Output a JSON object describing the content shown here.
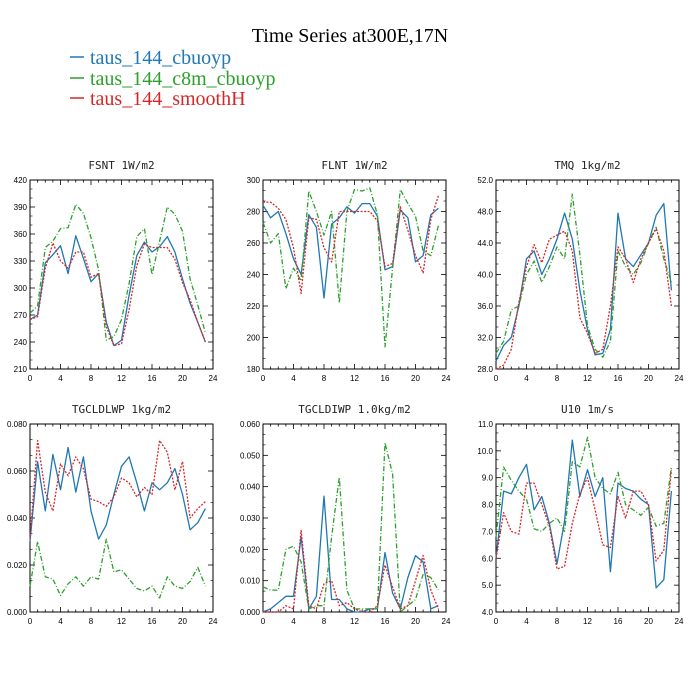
{
  "figure": {
    "title": "Time Series at300E,17N",
    "legend": [
      {
        "label": "taus_144_cbuoyp",
        "color": "#1f77b4"
      },
      {
        "label": "taus_144_c8m_cbuoyp",
        "color": "#2ca02c"
      },
      {
        "label": "taus_144_smoothH",
        "color": "#d62728"
      }
    ]
  },
  "chart_data": [
    {
      "type": "line",
      "title": "FSNT   1W/m2",
      "xlim": [
        0,
        24
      ],
      "ylim": [
        210,
        420
      ],
      "xticks": [
        0,
        4,
        8,
        12,
        16,
        20,
        24
      ],
      "yticks": [
        210,
        240,
        270,
        300,
        330,
        360,
        390,
        420
      ],
      "ytick_labels": [
        "210",
        "240",
        "270",
        "300",
        "330",
        "360",
        "390",
        "420"
      ],
      "x": [
        0,
        1,
        2,
        3,
        4,
        5,
        6,
        7,
        8,
        9,
        10,
        11,
        12,
        13,
        14,
        15,
        16,
        17,
        18,
        19,
        20,
        21,
        22,
        23
      ],
      "series": [
        {
          "name": "taus_144_cbuoyp",
          "color": "#1f77b4",
          "style": "solid",
          "values": [
            265,
            270,
            328,
            337,
            347,
            316,
            358,
            333,
            307,
            316,
            262,
            236,
            242,
            292,
            336,
            351,
            340,
            346,
            357,
            340,
            310,
            283,
            262,
            240
          ]
        },
        {
          "name": "taus_144_c8m_cbuoyp",
          "color": "#2ca02c",
          "style": "dashdot",
          "values": [
            272,
            280,
            345,
            352,
            366,
            367,
            393,
            383,
            356,
            320,
            242,
            246,
            265,
            305,
            357,
            366,
            315,
            352,
            390,
            382,
            363,
            310,
            281,
            250
          ]
        },
        {
          "name": "taus_144_smoothH",
          "color": "#d62728",
          "style": "dotted",
          "values": [
            265,
            268,
            322,
            350,
            330,
            322,
            340,
            340,
            312,
            316,
            257,
            236,
            238,
            276,
            325,
            349,
            345,
            345,
            345,
            332,
            306,
            287,
            262,
            240
          ]
        }
      ]
    },
    {
      "type": "line",
      "title": "FLNT   1W/m2",
      "xlim": [
        0,
        24
      ],
      "ylim": [
        180,
        300
      ],
      "xticks": [
        0,
        4,
        8,
        12,
        16,
        20,
        24
      ],
      "yticks": [
        180,
        200,
        220,
        240,
        260,
        280,
        300
      ],
      "ytick_labels": [
        "180",
        "200",
        "220",
        "240",
        "260",
        "280",
        "300"
      ],
      "x": [
        0,
        1,
        2,
        3,
        4,
        5,
        6,
        7,
        8,
        9,
        10,
        11,
        12,
        13,
        14,
        15,
        16,
        17,
        18,
        19,
        20,
        21,
        22,
        23
      ],
      "series": [
        {
          "name": "taus_144_cbuoyp",
          "color": "#1f77b4",
          "style": "solid",
          "values": [
            284,
            276,
            280,
            266,
            250,
            240,
            278,
            270,
            225,
            272,
            276,
            283,
            279,
            285,
            285,
            277,
            243,
            245,
            281,
            276,
            248,
            252,
            278,
            282
          ]
        },
        {
          "name": "taus_144_c8m_cbuoyp",
          "color": "#2ca02c",
          "style": "dashdot",
          "values": [
            273,
            260,
            266,
            231,
            244,
            236,
            293,
            280,
            265,
            280,
            222,
            280,
            294,
            293,
            295,
            278,
            194,
            244,
            294,
            285,
            277,
            255,
            252,
            271
          ]
        },
        {
          "name": "taus_144_smoothH",
          "color": "#d62728",
          "style": "dotted",
          "values": [
            286,
            286,
            282,
            275,
            257,
            228,
            276,
            275,
            257,
            248,
            280,
            280,
            280,
            280,
            280,
            274,
            245,
            247,
            283,
            268,
            252,
            241,
            275,
            290
          ]
        }
      ]
    },
    {
      "type": "line",
      "title": "TMQ   1kg/m2",
      "xlim": [
        0,
        24
      ],
      "ylim": [
        28,
        52
      ],
      "xticks": [
        0,
        4,
        8,
        12,
        16,
        20,
        24
      ],
      "yticks": [
        28,
        32,
        36,
        40,
        44,
        48,
        52
      ],
      "ytick_labels": [
        "28.0",
        "32.0",
        "36.0",
        "40.0",
        "44.0",
        "48.0",
        "52.0"
      ],
      "x": [
        0,
        1,
        2,
        3,
        4,
        5,
        6,
        7,
        8,
        9,
        10,
        11,
        12,
        13,
        14,
        15,
        16,
        17,
        18,
        19,
        20,
        21,
        22,
        23
      ],
      "series": [
        {
          "name": "taus_144_cbuoyp",
          "color": "#1f77b4",
          "style": "solid",
          "values": [
            29.0,
            31.0,
            32.0,
            36.0,
            42.0,
            43.0,
            40.0,
            42.0,
            44.5,
            47.8,
            44.5,
            38.0,
            33.0,
            29.8,
            30.0,
            33.0,
            47.8,
            42.0,
            41.0,
            42.5,
            44.0,
            47.5,
            49.0,
            38.0
          ]
        },
        {
          "name": "taus_144_c8m_cbuoyp",
          "color": "#2ca02c",
          "style": "dashdot",
          "values": [
            30.0,
            31.5,
            35.5,
            36.0,
            40.0,
            41.7,
            39.0,
            41.0,
            43.5,
            42.0,
            50.2,
            42.5,
            33.5,
            30.5,
            29.5,
            31.5,
            43.0,
            41.0,
            40.0,
            41.5,
            44.0,
            46.0,
            42.0,
            39.0
          ]
        },
        {
          "name": "taus_144_smoothH",
          "color": "#d62728",
          "style": "dotted",
          "values": [
            28.0,
            28.5,
            30.5,
            36.5,
            41.0,
            43.8,
            41.5,
            44.5,
            45.0,
            45.5,
            43.0,
            34.5,
            32.5,
            30.0,
            30.5,
            36.0,
            43.5,
            42.0,
            39.0,
            42.0,
            44.0,
            45.8,
            43.0,
            36.0
          ]
        }
      ]
    },
    {
      "type": "line",
      "title": "TGCLDLWP   1kg/m2",
      "xlim": [
        0,
        24
      ],
      "ylim": [
        0.0,
        0.08
      ],
      "xticks": [
        0,
        4,
        8,
        12,
        16,
        20,
        24
      ],
      "yticks": [
        0.0,
        0.02,
        0.04,
        0.06,
        0.08
      ],
      "ytick_labels": [
        "0.000",
        "0.020",
        "0.040",
        "0.060",
        "0.080"
      ],
      "x": [
        0,
        1,
        2,
        3,
        4,
        5,
        6,
        7,
        8,
        9,
        10,
        11,
        12,
        13,
        14,
        15,
        16,
        17,
        18,
        19,
        20,
        21,
        22,
        23
      ],
      "series": [
        {
          "name": "taus_144_cbuoyp",
          "color": "#1f77b4",
          "style": "solid",
          "values": [
            0.03,
            0.064,
            0.043,
            0.067,
            0.052,
            0.07,
            0.051,
            0.066,
            0.043,
            0.031,
            0.037,
            0.05,
            0.062,
            0.066,
            0.055,
            0.043,
            0.055,
            0.052,
            0.055,
            0.061,
            0.05,
            0.035,
            0.038,
            0.044
          ]
        },
        {
          "name": "taus_144_c8m_cbuoyp",
          "color": "#2ca02c",
          "style": "dashdot",
          "values": [
            0.011,
            0.03,
            0.015,
            0.014,
            0.007,
            0.012,
            0.015,
            0.011,
            0.015,
            0.014,
            0.031,
            0.017,
            0.018,
            0.014,
            0.01,
            0.009,
            0.011,
            0.006,
            0.015,
            0.011,
            0.01,
            0.013,
            0.019,
            0.011
          ]
        },
        {
          "name": "taus_144_smoothH",
          "color": "#d62728",
          "style": "dotted",
          "values": [
            0.031,
            0.073,
            0.051,
            0.043,
            0.063,
            0.058,
            0.066,
            0.061,
            0.048,
            0.047,
            0.045,
            0.049,
            0.057,
            0.055,
            0.049,
            0.053,
            0.05,
            0.073,
            0.068,
            0.052,
            0.064,
            0.04,
            0.044,
            0.047
          ]
        }
      ]
    },
    {
      "type": "line",
      "title": "TGCLDIWP   1.0kg/m2",
      "xlim": [
        0,
        24
      ],
      "ylim": [
        0.0,
        0.06
      ],
      "xticks": [
        0,
        4,
        8,
        12,
        16,
        20,
        24
      ],
      "yticks": [
        0.0,
        0.01,
        0.02,
        0.03,
        0.04,
        0.05,
        0.06
      ],
      "ytick_labels": [
        "0.000",
        "0.010",
        "0.020",
        "0.030",
        "0.040",
        "0.050",
        "0.060"
      ],
      "x": [
        0,
        1,
        2,
        3,
        4,
        5,
        6,
        7,
        8,
        9,
        10,
        11,
        12,
        13,
        14,
        15,
        16,
        17,
        18,
        19,
        20,
        21,
        22,
        23
      ],
      "series": [
        {
          "name": "taus_144_cbuoyp",
          "color": "#1f77b4",
          "style": "solid",
          "values": [
            0.0,
            0.001,
            0.003,
            0.005,
            0.005,
            0.024,
            0.001,
            0.005,
            0.037,
            0.004,
            0.004,
            0.001,
            0.0,
            0.0,
            0.001,
            0.001,
            0.019,
            0.006,
            0.001,
            0.011,
            0.018,
            0.016,
            0.001,
            0.002
          ]
        },
        {
          "name": "taus_144_c8m_cbuoyp",
          "color": "#2ca02c",
          "style": "dashdot",
          "values": [
            0.008,
            0.007,
            0.007,
            0.02,
            0.021,
            0.016,
            0.001,
            0.002,
            0.002,
            0.024,
            0.043,
            0.007,
            0.001,
            0.001,
            0.001,
            0.001,
            0.054,
            0.044,
            0.0,
            0.002,
            0.004,
            0.012,
            0.011,
            0.007
          ]
        },
        {
          "name": "taus_144_smoothH",
          "color": "#d62728",
          "style": "dotted",
          "values": [
            0.0,
            0.0,
            0.0,
            0.002,
            0.001,
            0.026,
            0.002,
            0.001,
            0.009,
            0.01,
            0.002,
            0.003,
            0.001,
            0.0,
            0.0,
            0.002,
            0.015,
            0.008,
            0.001,
            0.002,
            0.01,
            0.018,
            0.007,
            0.001
          ]
        }
      ]
    },
    {
      "type": "line",
      "title": "U10   1m/s",
      "xlim": [
        0,
        24
      ],
      "ylim": [
        4,
        11
      ],
      "xticks": [
        0,
        4,
        8,
        12,
        16,
        20,
        24
      ],
      "yticks": [
        4,
        5,
        6,
        7,
        8,
        9,
        10,
        11
      ],
      "ytick_labels": [
        "4.0",
        "5.0",
        "6.0",
        "7.0",
        "8.0",
        "9.0",
        "10.0",
        "11.0"
      ],
      "x": [
        0,
        1,
        2,
        3,
        4,
        5,
        6,
        7,
        8,
        9,
        10,
        11,
        12,
        13,
        14,
        15,
        16,
        17,
        18,
        19,
        20,
        21,
        22,
        23
      ],
      "series": [
        {
          "name": "taus_144_cbuoyp",
          "color": "#1f77b4",
          "style": "solid",
          "values": [
            6.0,
            8.5,
            8.4,
            9.0,
            9.5,
            7.8,
            8.3,
            7.3,
            5.8,
            7.4,
            10.4,
            8.3,
            9.3,
            8.3,
            9.0,
            5.5,
            8.8,
            8.6,
            8.5,
            8.2,
            8.0,
            4.9,
            5.2,
            8.5
          ]
        },
        {
          "name": "taus_144_c8m_cbuoyp",
          "color": "#2ca02c",
          "style": "dashdot",
          "values": [
            6.8,
            9.4,
            8.9,
            8.5,
            8.2,
            7.1,
            7.0,
            7.3,
            7.5,
            7.0,
            9.6,
            9.4,
            10.5,
            9.0,
            8.6,
            8.4,
            9.2,
            8.0,
            7.8,
            7.6,
            7.9,
            7.2,
            7.3,
            9.4
          ]
        },
        {
          "name": "taus_144_smoothH",
          "color": "#d62728",
          "style": "dotted",
          "values": [
            6.0,
            7.7,
            7.0,
            6.9,
            8.8,
            8.8,
            8.0,
            7.2,
            5.6,
            5.7,
            7.3,
            8.4,
            9.0,
            7.8,
            6.5,
            6.4,
            8.3,
            7.5,
            8.5,
            8.5,
            8.0,
            5.9,
            6.3,
            9.3
          ]
        }
      ]
    }
  ]
}
